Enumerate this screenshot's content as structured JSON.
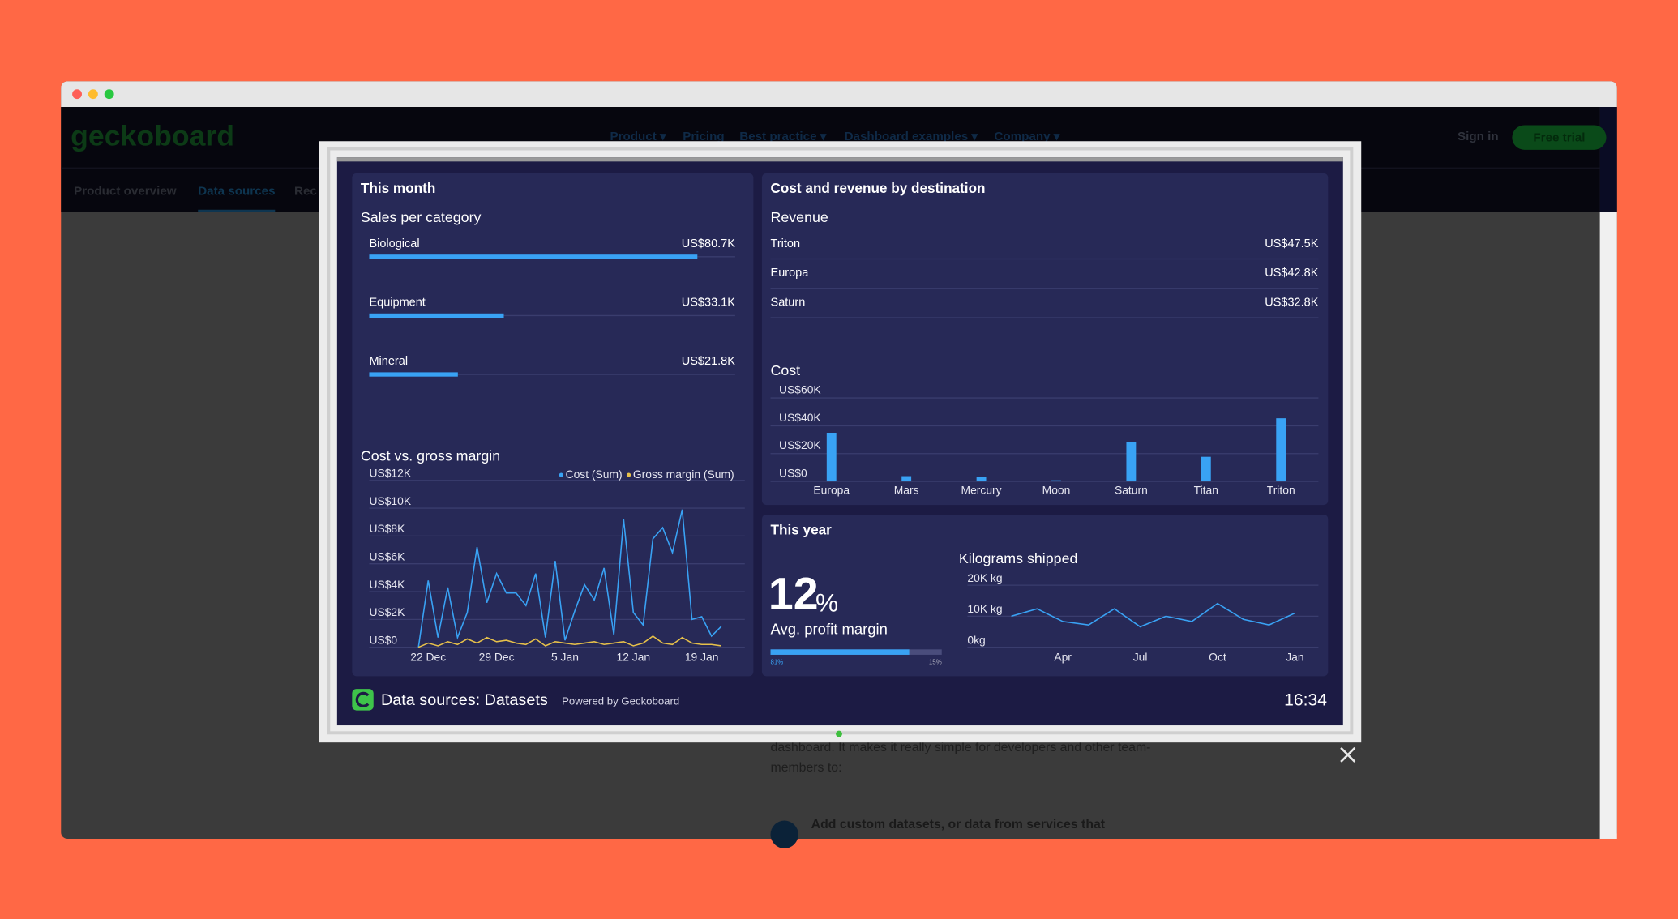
{
  "website": {
    "logo": "geckoboard",
    "nav": [
      "Product ▾",
      "Pricing",
      "Best practice ▾",
      "Dashboard examples ▾",
      "Company ▾"
    ],
    "sign_in": "Sign in",
    "free_trial": "Free trial",
    "subnav": [
      "Product overview",
      "Data sources",
      "Rec"
    ],
    "body_text": [
      "dashboard. It makes it really simple for developers and other team-",
      "members to:",
      "Add custom datasets, or data from services that"
    ]
  },
  "dashboard": {
    "this_month": {
      "title": "This month",
      "sales": {
        "type": "hbar",
        "title": "Sales per category",
        "categories": [
          "Biological",
          "Equipment",
          "Mineral"
        ],
        "values": [
          80700,
          33100,
          21800
        ],
        "value_labels": [
          "US$80.7K",
          "US$33.1K",
          "US$21.8K"
        ],
        "xlim": [
          0,
          90000
        ],
        "color": "#39a2f4"
      },
      "cost_margin": {
        "type": "line",
        "title": "Cost vs. gross margin",
        "categories": [
          null,
          "22 Dec",
          null,
          null,
          null,
          null,
          null,
          null,
          "29 Dec",
          null,
          null,
          null,
          null,
          null,
          null,
          "5 Jan",
          null,
          null,
          null,
          null,
          null,
          null,
          "12 Jan",
          null,
          null,
          null,
          null,
          null,
          null,
          "19 Jan",
          null,
          null
        ],
        "series": [
          {
            "name": "Cost (Sum)",
            "color": "#39a2f4",
            "values": [
              0,
              4800,
              700,
              4300,
              700,
              2500,
              7200,
              3200,
              5300,
              3900,
              3900,
              3000,
              5300,
              700,
              6200,
              500,
              2600,
              4500,
              3400,
              5700,
              900,
              9200,
              2500,
              1600,
              7800,
              8600,
              6800,
              9900,
              2000,
              2200,
              800,
              1500
            ]
          },
          {
            "name": "Gross margin (Sum)",
            "color": "#e6c04a",
            "values": [
              0,
              300,
              100,
              400,
              200,
              600,
              300,
              700,
              400,
              500,
              300,
              200,
              600,
              100,
              400,
              300,
              200,
              300,
              400,
              200,
              300,
              400,
              100,
              300,
              800,
              300,
              200,
              700,
              300,
              200,
              200,
              100
            ]
          }
        ],
        "ylim": [
          0,
          12000
        ],
        "yticks": [
          {
            "value": 0,
            "label": "US$0"
          },
          {
            "value": 2000,
            "label": "US$2K"
          },
          {
            "value": 4000,
            "label": "US$4K"
          },
          {
            "value": 6000,
            "label": "US$6K"
          },
          {
            "value": 8000,
            "label": "US$8K"
          },
          {
            "value": 10000,
            "label": "US$10K"
          },
          {
            "value": 12000,
            "label": "US$12K"
          }
        ],
        "grid": true
      }
    },
    "destinations": {
      "title": "Cost and revenue by destination",
      "revenue": {
        "title": "Revenue",
        "rows": [
          [
            "Triton",
            "US$47.5K"
          ],
          [
            "Europa",
            "US$42.8K"
          ],
          [
            "Saturn",
            "US$32.8K"
          ]
        ]
      },
      "cost": {
        "type": "bar",
        "title": "Cost",
        "categories": [
          "Europa",
          "Mars",
          "Mercury",
          "Moon",
          "Saturn",
          "Titan",
          "Triton"
        ],
        "values": [
          35000,
          3800,
          3100,
          800,
          28500,
          17700,
          45400
        ],
        "color": "#39a2f4",
        "ylim": [
          0,
          60000
        ],
        "yticks": [
          {
            "value": 0,
            "label": "US$0"
          },
          {
            "value": 20000,
            "label": "US$20K"
          },
          {
            "value": 40000,
            "label": "US$40K"
          },
          {
            "value": 60000,
            "label": "US$60K"
          }
        ],
        "grid": true
      }
    },
    "this_year": {
      "title": "This year",
      "kpi": {
        "value": 12,
        "unit": "%",
        "label": "Avg. profit margin",
        "progress": 81,
        "progress_label": "81%",
        "target_label": "15%"
      },
      "kg": {
        "type": "line",
        "title": "Kilograms shipped",
        "categories": [
          null,
          null,
          "Apr",
          null,
          null,
          "Jul",
          null,
          null,
          "Oct",
          null,
          null,
          "Jan"
        ],
        "series": [
          {
            "name": "Kilograms",
            "color": "#39a2f4",
            "values": [
              10000,
              12400,
              8300,
              7200,
              12400,
              6600,
              10000,
              8300,
              14100,
              9000,
              7200,
              11000
            ]
          }
        ],
        "ylim": [
          0,
          20000
        ],
        "yticks": [
          {
            "value": 0,
            "label": "0kg"
          },
          {
            "value": 10000,
            "label": "10K kg"
          },
          {
            "value": 20000,
            "label": "20K kg"
          }
        ],
        "grid": true
      }
    },
    "footer": {
      "title": "Data sources: Datasets",
      "powered": "Powered by Geckoboard",
      "time": "16:34"
    }
  }
}
